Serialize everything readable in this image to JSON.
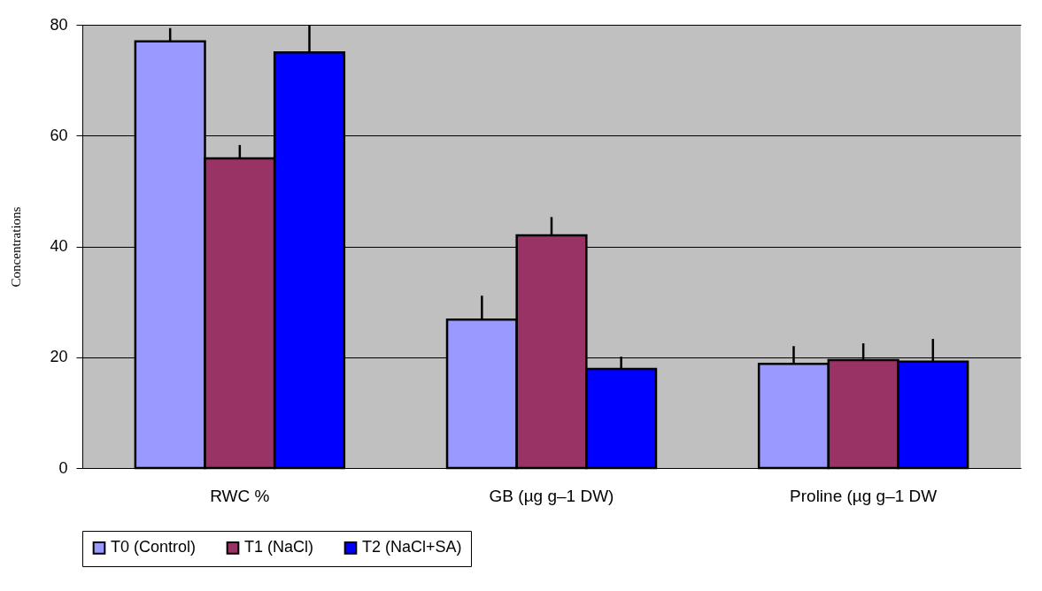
{
  "chart_data": {
    "type": "bar",
    "ylabel": "Concentrations",
    "categories": [
      "RWC %",
      "GB (µg g–1 DW)",
      "Proline (µg g–1 DW"
    ],
    "ylim": [
      0,
      80
    ],
    "yticks": [
      0,
      20,
      40,
      60,
      80
    ],
    "grid": "y",
    "legend": "bottom",
    "series": [
      {
        "name": "T0 (Control)",
        "color": "#9999ff",
        "values": [
          77.0,
          26.8,
          18.8
        ],
        "errors": [
          [
            77.0,
            79.4
          ],
          [
            26.8,
            31.1
          ],
          [
            18.8,
            22.0
          ]
        ]
      },
      {
        "name": "T1 (NaCl)",
        "color": "#993366",
        "values": [
          55.9,
          42.0,
          19.5
        ],
        "errors": [
          [
            55.9,
            58.3
          ],
          [
            42.0,
            45.3
          ],
          [
            19.5,
            22.5
          ]
        ]
      },
      {
        "name": "T2 (NaCl+SA)",
        "color": "#0000ff",
        "values": [
          75.0,
          17.9,
          19.2
        ],
        "errors": [
          [
            75.0,
            80.0
          ],
          [
            17.9,
            20.1
          ],
          [
            19.2,
            23.3
          ]
        ]
      }
    ]
  }
}
